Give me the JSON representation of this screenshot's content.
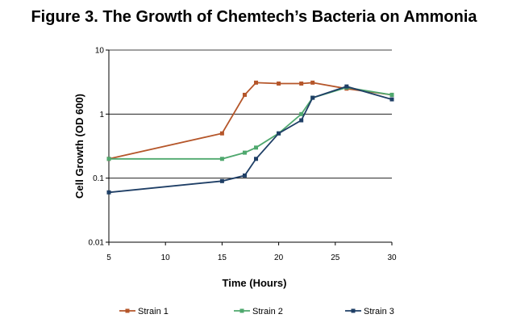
{
  "title": "Figure 3.  The Growth of Chemtech’s Bacteria on Ammonia",
  "chart_data": {
    "type": "line",
    "xlabel": "Time (Hours)",
    "ylabel": "Cell Growth (OD 600)",
    "xlim": [
      5,
      30
    ],
    "ylim": [
      0.01,
      10
    ],
    "yscale": "log",
    "xticks": [
      "5",
      "10",
      "15",
      "20",
      "25",
      "30"
    ],
    "yticks": [
      "0.01",
      "0.1",
      "1",
      "10"
    ],
    "grid": "horizontal",
    "legend": "bottom",
    "series": [
      {
        "name": "Strain 1",
        "color": "#b5562a",
        "points": [
          [
            5,
            0.2
          ],
          [
            15,
            0.5
          ],
          [
            17,
            2.0
          ],
          [
            18,
            3.1
          ],
          [
            20,
            3.0
          ],
          [
            22,
            3.0
          ],
          [
            23,
            3.1
          ],
          [
            26,
            2.5
          ],
          [
            30,
            2.0
          ]
        ]
      },
      {
        "name": "Strain 2",
        "color": "#4fa86e",
        "points": [
          [
            5,
            0.2
          ],
          [
            15,
            0.2
          ],
          [
            17,
            0.25
          ],
          [
            18,
            0.3
          ],
          [
            20,
            0.5
          ],
          [
            22,
            1.0
          ],
          [
            23,
            1.8
          ],
          [
            26,
            2.6
          ],
          [
            30,
            2.0
          ]
        ]
      },
      {
        "name": "Strain 3",
        "color": "#1f3f66",
        "points": [
          [
            5,
            0.06
          ],
          [
            15,
            0.09
          ],
          [
            17,
            0.11
          ],
          [
            18,
            0.2
          ],
          [
            20,
            0.5
          ],
          [
            22,
            0.8
          ],
          [
            23,
            1.8
          ],
          [
            26,
            2.7
          ],
          [
            30,
            1.7
          ]
        ]
      }
    ]
  }
}
